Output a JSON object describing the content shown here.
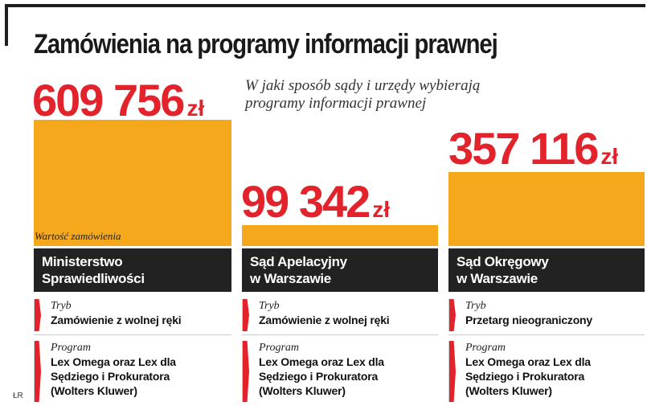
{
  "title": "Zamówienia na programy informacji prawnej",
  "subtitle": "W jaki sposób sądy i urzędy wybierają programy informacji prawnej",
  "bar_note": "Wartość zamówienia",
  "credit": "ŁR",
  "colors": {
    "bar": "#f5a81c",
    "amount": "#e3232b",
    "name_box": "#222222"
  },
  "chart_data": {
    "type": "bar",
    "categories": [
      "Ministerstwo Sprawiedliwości",
      "Sąd Apelacyjny w Warszawie",
      "Sąd Okręgowy w Warszawie"
    ],
    "values": [
      609756,
      99342,
      357116
    ],
    "unit": "zł",
    "value_labels": [
      "609 756",
      "99 342",
      "357 116"
    ]
  },
  "institutions": [
    {
      "name_line1": "Ministerstwo",
      "name_line2": "Sprawiedliwości",
      "tryb_label": "Tryb",
      "tryb": "Zamówienie z wolnej ręki",
      "program_label": "Program",
      "program_line1": "Lex Omega oraz Lex dla",
      "program_line2": "Sędziego i Prokuratora",
      "program_line3": "(Wolters Kluwer)"
    },
    {
      "name_line1": "Sąd Apelacyjny",
      "name_line2": "w Warszawie",
      "tryb_label": "Tryb",
      "tryb": "Zamówienie z wolnej ręki",
      "program_label": "Program",
      "program_line1": "Lex Omega oraz Lex dla",
      "program_line2": "Sędziego i Prokuratora",
      "program_line3": "(Wolters Kluwer)"
    },
    {
      "name_line1": "Sąd Okręgowy",
      "name_line2": "w Warszawie",
      "tryb_label": "Tryb",
      "tryb": "Przetarg nieograniczony",
      "program_label": "Program",
      "program_line1": "Lex Omega oraz Lex dla",
      "program_line2": "Sędziego i Prokuratora",
      "program_line3": "(Wolters Kluwer)"
    }
  ]
}
